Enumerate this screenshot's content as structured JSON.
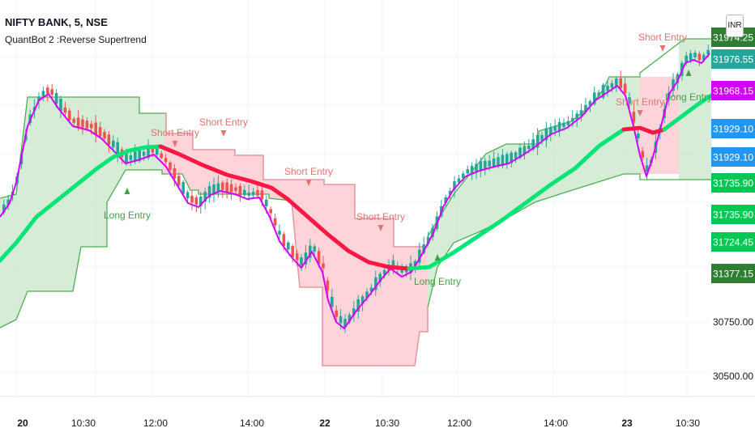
{
  "header": {
    "title": "NIFTY BANK, 5, NSE",
    "indicator": "QuantBot 2 :Reverse Supertrend",
    "currency": "INR"
  },
  "colors": {
    "up": "#26a69a",
    "down": "#ef5350",
    "green_line": "#00e676",
    "red_line": "#ff1744",
    "magenta_line": "#d500f9",
    "band_green": "#4caf50",
    "band_fill_green": "#c8e6c9",
    "band_fill_red": "#ffcdd2",
    "signal_green": "#43a047",
    "signal_red": "#e57373"
  },
  "chart_data": {
    "type": "candlestick",
    "ylim": [
      30350,
      32200
    ],
    "x_ticks": [
      {
        "label": "20",
        "bold": true
      },
      {
        "label": "10:30",
        "bold": false
      },
      {
        "label": "12:00",
        "bold": false
      },
      {
        "label": "14:00",
        "bold": false
      },
      {
        "label": "22",
        "bold": true
      },
      {
        "label": "10:30",
        "bold": false
      },
      {
        "label": "12:00",
        "bold": false
      },
      {
        "label": "14:00",
        "bold": false
      },
      {
        "label": "23",
        "bold": true
      },
      {
        "label": "10:30",
        "bold": false
      }
    ],
    "y_ticks": [
      "30500.00",
      "30750.00"
    ],
    "price_labels": [
      {
        "text": "31974.25",
        "color": "#2e7d32"
      },
      {
        "text": "31976.55",
        "color": "#26a69a"
      },
      {
        "text": "31968.15",
        "color": "#d500f9"
      },
      {
        "text": "31929.10",
        "color": "#2196f3"
      },
      {
        "text": "31929.10",
        "color": "#2196f3"
      },
      {
        "text": "31735.90",
        "color": "#00c853"
      },
      {
        "text": "31735.90",
        "color": "#00c853"
      },
      {
        "text": "31724.45",
        "color": "#00c853"
      },
      {
        "text": "31377.15",
        "color": "#2e7d32"
      }
    ],
    "signals": [
      {
        "label": "Long Entry",
        "type": "long"
      },
      {
        "label": "Short Entry",
        "type": "short"
      },
      {
        "label": "Short Entry",
        "type": "short"
      },
      {
        "label": "Short Entry",
        "type": "short"
      },
      {
        "label": "Short Entry",
        "type": "short"
      },
      {
        "label": "Long Entry",
        "type": "long"
      },
      {
        "label": "Short Entry",
        "type": "short"
      },
      {
        "label": "Short Entry",
        "type": "short"
      },
      {
        "label": "Long Entry",
        "type": "long"
      }
    ]
  }
}
